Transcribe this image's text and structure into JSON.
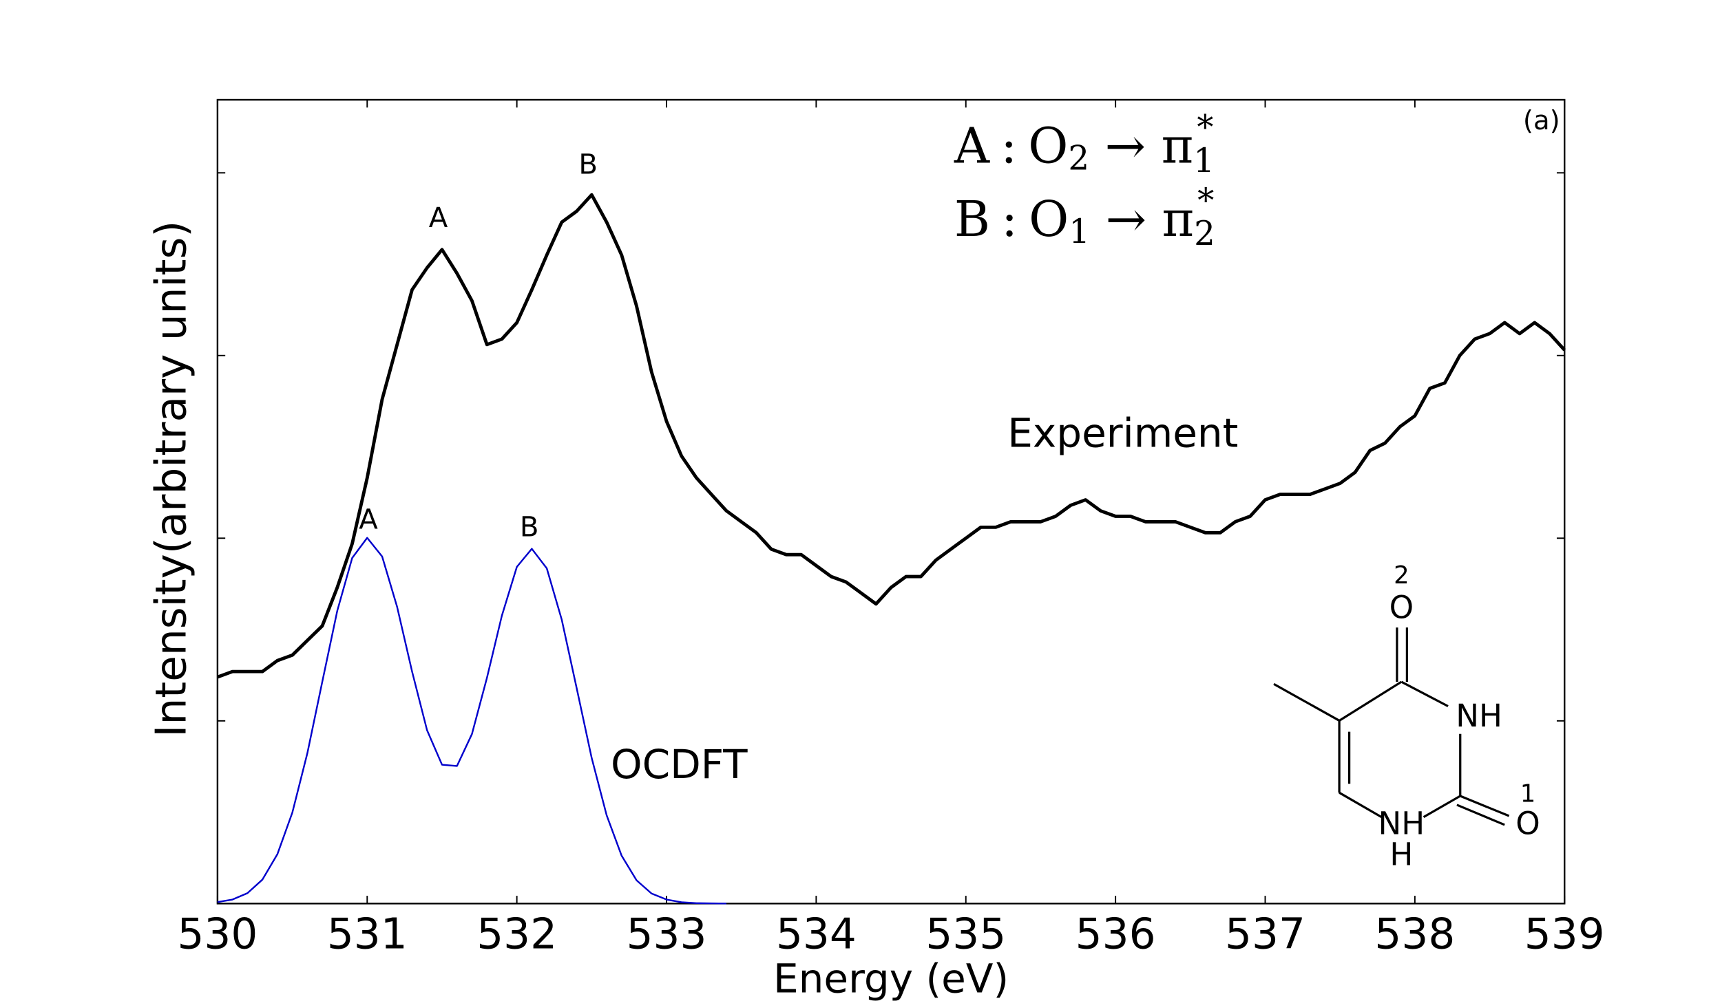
{
  "chart_data": {
    "type": "line",
    "xlabel": "Energy (eV)",
    "ylabel": "Intensity(arbitrary units)",
    "panel_label": "(a)",
    "xlim": [
      530,
      539
    ],
    "xticks": [
      530,
      531,
      532,
      533,
      534,
      535,
      536,
      537,
      538,
      539
    ],
    "ylim": [
      0,
      4.4
    ],
    "yticks": [
      1,
      2,
      3,
      4
    ],
    "series": [
      {
        "name": "Experiment",
        "color": "#000000",
        "x": [
          530.0,
          530.1,
          530.2,
          530.3,
          530.4,
          530.5,
          530.6,
          530.7,
          530.8,
          530.9,
          531.0,
          531.1,
          531.2,
          531.3,
          531.4,
          531.5,
          531.6,
          531.7,
          531.8,
          531.9,
          532.0,
          532.1,
          532.2,
          532.3,
          532.4,
          532.5,
          532.6,
          532.7,
          532.8,
          532.9,
          533.0,
          533.1,
          533.2,
          533.3,
          533.4,
          533.5,
          533.6,
          533.7,
          533.8,
          533.9,
          534.0,
          534.1,
          534.2,
          534.3,
          534.4,
          534.5,
          534.6,
          534.7,
          534.8,
          534.9,
          535.0,
          535.1,
          535.2,
          535.3,
          535.4,
          535.5,
          535.6,
          535.7,
          535.8,
          535.9,
          536.0,
          536.1,
          536.2,
          536.3,
          536.4,
          536.5,
          536.6,
          536.7,
          536.8,
          536.9,
          537.0,
          537.1,
          537.2,
          537.3,
          537.4,
          537.5,
          537.6,
          537.7,
          537.8,
          537.9,
          538.0,
          538.1,
          538.2,
          538.3,
          538.4,
          538.5,
          538.6,
          538.7,
          538.8,
          538.9,
          539.0
        ],
        "values": [
          1.24,
          1.27,
          1.27,
          1.27,
          1.33,
          1.36,
          1.44,
          1.52,
          1.73,
          1.97,
          2.33,
          2.76,
          3.06,
          3.36,
          3.48,
          3.58,
          3.45,
          3.3,
          3.06,
          3.09,
          3.18,
          3.36,
          3.55,
          3.73,
          3.79,
          3.88,
          3.73,
          3.55,
          3.27,
          2.91,
          2.64,
          2.45,
          2.33,
          2.24,
          2.15,
          2.09,
          2.03,
          1.94,
          1.91,
          1.91,
          1.85,
          1.79,
          1.76,
          1.7,
          1.64,
          1.73,
          1.79,
          1.79,
          1.88,
          1.94,
          2.0,
          2.06,
          2.06,
          2.09,
          2.09,
          2.09,
          2.12,
          2.18,
          2.21,
          2.15,
          2.12,
          2.12,
          2.09,
          2.09,
          2.09,
          2.06,
          2.03,
          2.03,
          2.09,
          2.12,
          2.21,
          2.24,
          2.24,
          2.24,
          2.27,
          2.3,
          2.36,
          2.48,
          2.52,
          2.61,
          2.67,
          2.82,
          2.85,
          3.0,
          3.09,
          3.12,
          3.18,
          3.12,
          3.18,
          3.12,
          3.03
        ],
        "peak_labels": [
          "A",
          "B"
        ]
      },
      {
        "name": "OCDFT",
        "color": "#0000cc",
        "x": [
          530.0,
          530.1,
          530.2,
          530.3,
          530.4,
          530.5,
          530.6,
          530.7,
          530.8,
          530.9,
          531.0,
          531.1,
          531.2,
          531.3,
          531.4,
          531.5,
          531.6,
          531.7,
          531.8,
          531.9,
          532.0,
          532.1,
          532.2,
          532.3,
          532.4,
          532.5,
          532.6,
          532.7,
          532.8,
          532.9,
          533.0,
          533.1,
          533.2,
          533.3,
          533.4
        ],
        "values": [
          0.008,
          0.022,
          0.057,
          0.131,
          0.27,
          0.498,
          0.822,
          1.214,
          1.602,
          1.892,
          2.002,
          1.9,
          1.624,
          1.27,
          0.949,
          0.76,
          0.753,
          0.928,
          1.235,
          1.576,
          1.843,
          1.942,
          1.835,
          1.554,
          1.178,
          0.797,
          0.483,
          0.262,
          0.127,
          0.055,
          0.022,
          0.007,
          0.002,
          0.001,
          0
        ],
        "peak_labels": [
          "A",
          "B"
        ]
      }
    ],
    "assignments": [
      {
        "peak": "A",
        "sep": ":",
        "atom": "O",
        "atom_sub": "2",
        "arrow": "→",
        "orbital": "π",
        "orbital_sub": "1",
        "star": "*"
      },
      {
        "peak": "B",
        "sep": ":",
        "atom": "O",
        "atom_sub": "1",
        "arrow": "→",
        "orbital": "π",
        "orbital_sub": "2",
        "star": "*"
      }
    ],
    "molecule_labels": [
      "2",
      "O",
      "NH",
      "NH",
      "H",
      "1",
      "O"
    ]
  }
}
